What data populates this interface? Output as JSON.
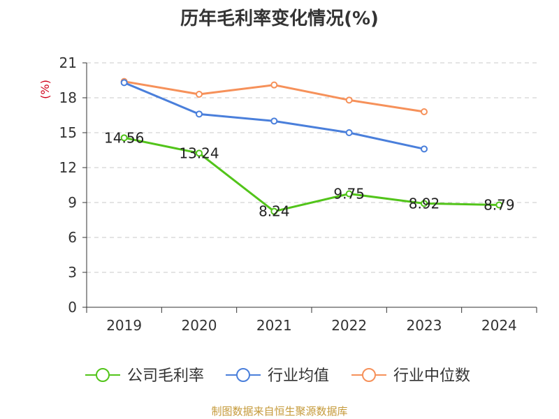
{
  "chart_data": {
    "type": "line",
    "title": "历年毛利率变化情况(%)",
    "ylabel": "(%)",
    "xlabel": "",
    "categories": [
      "2019",
      "2020",
      "2021",
      "2022",
      "2023",
      "2024"
    ],
    "ylim": [
      0,
      21
    ],
    "yticks": [
      0,
      3,
      6,
      9,
      12,
      15,
      18,
      21
    ],
    "grid": true,
    "legend_position": "bottom",
    "series": [
      {
        "name": "公司毛利率",
        "color": "#52c41a",
        "values": [
          14.56,
          13.24,
          8.24,
          9.75,
          8.92,
          8.79
        ],
        "labels": [
          "14.56",
          "13.24",
          "8.24",
          "9.75",
          "8.92",
          "8.79"
        ]
      },
      {
        "name": "行业均值",
        "color": "#4a7fdb",
        "values": [
          19.3,
          16.6,
          16.0,
          15.0,
          13.6,
          null
        ]
      },
      {
        "name": "行业中位数",
        "color": "#f6915a",
        "values": [
          19.4,
          18.3,
          19.1,
          17.8,
          16.8,
          null
        ]
      }
    ]
  },
  "source": "制图数据来自恒生聚源数据库"
}
